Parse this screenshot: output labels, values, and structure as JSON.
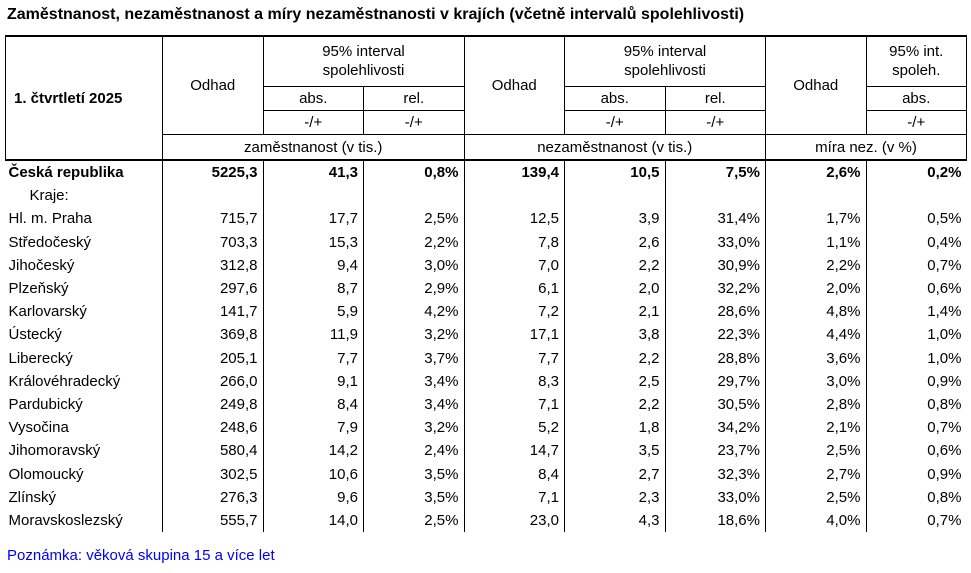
{
  "title": "Zaměstnanost, nezaměstnanost a míry nezaměstnanosti v krajích (včetně intervalů spolehlivosti)",
  "note": "Poznámka: věková skupina 15 a více let",
  "colors": {
    "note_text": "#0000FF",
    "border": "#000000",
    "text": "#000000",
    "background": "#FFFFFF"
  },
  "table": {
    "period_label": "1. čtvrtletí 2025",
    "groups": [
      {
        "estimate_label": "Odhad",
        "interval_label": "95% interval spolehlivosti",
        "sub_labels": [
          "abs.",
          "rel."
        ],
        "pm_labels": [
          "-/+",
          "-/+"
        ],
        "measure_label": "zaměstnanost (v tis.)"
      },
      {
        "estimate_label": "Odhad",
        "interval_label": "95% interval spolehlivosti",
        "sub_labels": [
          "abs.",
          "rel."
        ],
        "pm_labels": [
          "-/+",
          "-/+"
        ],
        "measure_label": "nezaměstnanost (v tis.)"
      },
      {
        "estimate_label": "Odhad",
        "interval_label": "95% int. spoleh.",
        "sub_labels": [
          "abs."
        ],
        "pm_labels": [
          "-/+"
        ],
        "measure_label": "míra nez. (v %)"
      }
    ],
    "rows": [
      {
        "label": "Česká republika",
        "bold": true,
        "indent": false,
        "values": [
          "5225,3",
          "41,3",
          "0,8%",
          "139,4",
          "10,5",
          "7,5%",
          "2,6%",
          "0,2%"
        ]
      },
      {
        "label": "Kraje:",
        "bold": false,
        "indent": true,
        "values": [
          "",
          "",
          "",
          "",
          "",
          "",
          "",
          ""
        ]
      },
      {
        "label": "Hl. m. Praha",
        "bold": false,
        "indent": false,
        "values": [
          "715,7",
          "17,7",
          "2,5%",
          "12,5",
          "3,9",
          "31,4%",
          "1,7%",
          "0,5%"
        ]
      },
      {
        "label": "Středočeský",
        "bold": false,
        "indent": false,
        "values": [
          "703,3",
          "15,3",
          "2,2%",
          "7,8",
          "2,6",
          "33,0%",
          "1,1%",
          "0,4%"
        ]
      },
      {
        "label": "Jihočeský",
        "bold": false,
        "indent": false,
        "values": [
          "312,8",
          "9,4",
          "3,0%",
          "7,0",
          "2,2",
          "30,9%",
          "2,2%",
          "0,7%"
        ]
      },
      {
        "label": "Plzeňský",
        "bold": false,
        "indent": false,
        "values": [
          "297,6",
          "8,7",
          "2,9%",
          "6,1",
          "2,0",
          "32,2%",
          "2,0%",
          "0,6%"
        ]
      },
      {
        "label": "Karlovarský",
        "bold": false,
        "indent": false,
        "values": [
          "141,7",
          "5,9",
          "4,2%",
          "7,2",
          "2,1",
          "28,6%",
          "4,8%",
          "1,4%"
        ]
      },
      {
        "label": "Ústecký",
        "bold": false,
        "indent": false,
        "values": [
          "369,8",
          "11,9",
          "3,2%",
          "17,1",
          "3,8",
          "22,3%",
          "4,4%",
          "1,0%"
        ]
      },
      {
        "label": "Liberecký",
        "bold": false,
        "indent": false,
        "values": [
          "205,1",
          "7,7",
          "3,7%",
          "7,7",
          "2,2",
          "28,8%",
          "3,6%",
          "1,0%"
        ]
      },
      {
        "label": "Královéhradecký",
        "bold": false,
        "indent": false,
        "values": [
          "266,0",
          "9,1",
          "3,4%",
          "8,3",
          "2,5",
          "29,7%",
          "3,0%",
          "0,9%"
        ]
      },
      {
        "label": "Pardubický",
        "bold": false,
        "indent": false,
        "values": [
          "249,8",
          "8,4",
          "3,4%",
          "7,1",
          "2,2",
          "30,5%",
          "2,8%",
          "0,8%"
        ]
      },
      {
        "label": "Vysočina",
        "bold": false,
        "indent": false,
        "values": [
          "248,6",
          "7,9",
          "3,2%",
          "5,2",
          "1,8",
          "34,2%",
          "2,1%",
          "0,7%"
        ]
      },
      {
        "label": "Jihomoravský",
        "bold": false,
        "indent": false,
        "values": [
          "580,4",
          "14,2",
          "2,4%",
          "14,7",
          "3,5",
          "23,7%",
          "2,5%",
          "0,6%"
        ]
      },
      {
        "label": "Olomoucký",
        "bold": false,
        "indent": false,
        "values": [
          "302,5",
          "10,6",
          "3,5%",
          "8,4",
          "2,7",
          "32,3%",
          "2,7%",
          "0,9%"
        ]
      },
      {
        "label": "Zlínský",
        "bold": false,
        "indent": false,
        "values": [
          "276,3",
          "9,6",
          "3,5%",
          "7,1",
          "2,3",
          "33,0%",
          "2,5%",
          "0,8%"
        ]
      },
      {
        "label": "Moravskoslezský",
        "bold": false,
        "indent": false,
        "values": [
          "555,7",
          "14,0",
          "2,5%",
          "23,0",
          "4,3",
          "18,6%",
          "4,0%",
          "0,7%"
        ]
      }
    ]
  }
}
